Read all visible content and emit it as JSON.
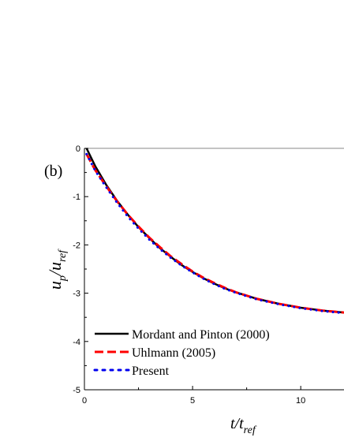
{
  "chart_data": {
    "type": "line",
    "panel_label": "(b)",
    "xlabel": {
      "main": "t/t",
      "sub": "ref"
    },
    "ylabel": {
      "main": "u",
      "sub1": "p",
      "mid": "/u",
      "sub2": "ref"
    },
    "xlim": [
      0,
      12
    ],
    "ylim": [
      -5,
      0
    ],
    "xticks": [
      0,
      5,
      10
    ],
    "yticks": [
      0,
      -1,
      -2,
      -3,
      -4,
      -5
    ],
    "grid": false,
    "legend_position": "bottom-left",
    "series": [
      {
        "name": "Mordant and Pinton (2000)",
        "color": "#000000",
        "style": "solid",
        "x": [
          0.1,
          0.5,
          1,
          1.5,
          2,
          2.5,
          3,
          3.5,
          4,
          4.5,
          5,
          5.5,
          6,
          6.5,
          7,
          7.5,
          8,
          8.5,
          9,
          9.5,
          10,
          10.5,
          11,
          11.5,
          12
        ],
        "y": [
          0,
          -0.37,
          -0.75,
          -1.08,
          -1.37,
          -1.63,
          -1.86,
          -2.07,
          -2.25,
          -2.42,
          -2.56,
          -2.69,
          -2.8,
          -2.9,
          -2.98,
          -3.05,
          -3.12,
          -3.17,
          -3.22,
          -3.26,
          -3.3,
          -3.33,
          -3.36,
          -3.38,
          -3.4
        ]
      },
      {
        "name": "Uhlmann (2005)",
        "color": "#ff0000",
        "style": "dashed",
        "x": [
          0.1,
          0.5,
          1,
          1.5,
          2,
          2.5,
          3,
          3.5,
          4,
          4.5,
          5,
          5.5,
          6,
          6.5,
          7,
          7.5,
          8,
          8.5,
          9,
          9.5,
          10,
          10.5,
          11,
          11.5,
          12
        ],
        "y": [
          -0.12,
          -0.45,
          -0.78,
          -1.09,
          -1.37,
          -1.62,
          -1.85,
          -2.05,
          -2.24,
          -2.4,
          -2.55,
          -2.68,
          -2.79,
          -2.89,
          -2.98,
          -3.05,
          -3.12,
          -3.17,
          -3.22,
          -3.26,
          -3.3,
          -3.33,
          -3.36,
          -3.38,
          -3.4
        ]
      },
      {
        "name": "Present",
        "color": "#0000ee",
        "style": "dotted",
        "x": [
          0.1,
          0.5,
          1,
          1.5,
          2,
          2.5,
          3,
          3.5,
          4,
          4.5,
          5,
          5.5,
          6,
          6.5,
          7,
          7.5,
          8,
          8.5,
          9,
          9.5,
          10,
          10.5,
          11,
          11.5,
          12
        ],
        "y": [
          -0.12,
          -0.46,
          -0.8,
          -1.12,
          -1.41,
          -1.66,
          -1.89,
          -2.09,
          -2.27,
          -2.43,
          -2.57,
          -2.7,
          -2.81,
          -2.91,
          -2.99,
          -3.06,
          -3.13,
          -3.18,
          -3.23,
          -3.27,
          -3.31,
          -3.34,
          -3.37,
          -3.39,
          -3.41
        ]
      }
    ]
  }
}
